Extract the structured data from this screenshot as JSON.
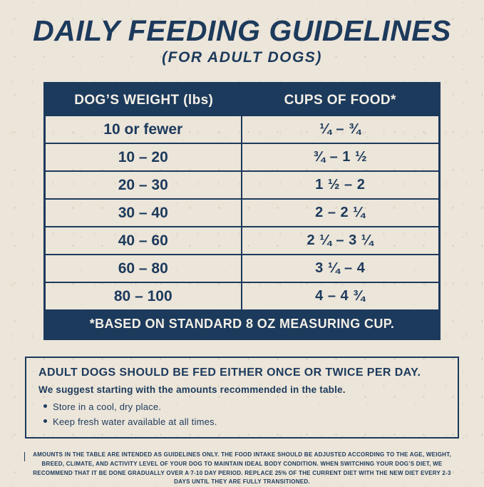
{
  "colors": {
    "navy": "#1c3a5c",
    "paper": "#ece5d9",
    "header_text": "#f4f0e7"
  },
  "header": {
    "title": "DAILY FEEDING GUIDELINES",
    "subtitle": "(FOR ADULT DOGS)"
  },
  "table": {
    "headers": {
      "weight": "DOG’S WEIGHT (lbs)",
      "cups": "CUPS OF FOOD*"
    },
    "rows": [
      {
        "weight": "10 or fewer",
        "cups": "¼ – ¾"
      },
      {
        "weight": "10 – 20",
        "cups": "¾ – 1 ½"
      },
      {
        "weight": "20 – 30",
        "cups": "1 ½ – 2"
      },
      {
        "weight": "30 – 40",
        "cups": "2 – 2 ¼"
      },
      {
        "weight": "40 – 60",
        "cups": "2 ¼ – 3 ¼"
      },
      {
        "weight": "60 – 80",
        "cups": "3 ¼ – 4"
      },
      {
        "weight": "80 – 100",
        "cups": "4 – 4 ¾"
      }
    ],
    "footnote": "*BASED ON STANDARD 8 OZ MEASURING CUP."
  },
  "info_box": {
    "heading": "ADULT DOGS SHOULD BE FED EITHER ONCE OR TWICE PER DAY.",
    "subheading": "We suggest starting with the amounts recommended in the table.",
    "bullets": [
      "Store in a cool, dry place.",
      "Keep fresh water available at all times."
    ]
  },
  "fine_print": "AMOUNTS IN THE TABLE ARE INTENDED AS GUIDELINES ONLY. THE FOOD INTAKE SHOULD BE ADJUSTED ACCORDING TO THE AGE, WEIGHT, BREED, CLIMATE, AND ACTIVITY LEVEL OF YOUR DOG TO MAINTAIN IDEAL BODY CONDITION. WHEN SWITCHING YOUR DOG’S DIET, WE RECOMMEND THAT IT BE DONE GRADUALLY OVER A 7-10 DAY PERIOD. REPLACE 25% OF THE CURRENT DIET WITH THE NEW DIET EVERY 2-3 DAYS UNTIL THEY ARE FULLY TRANSITIONED."
}
